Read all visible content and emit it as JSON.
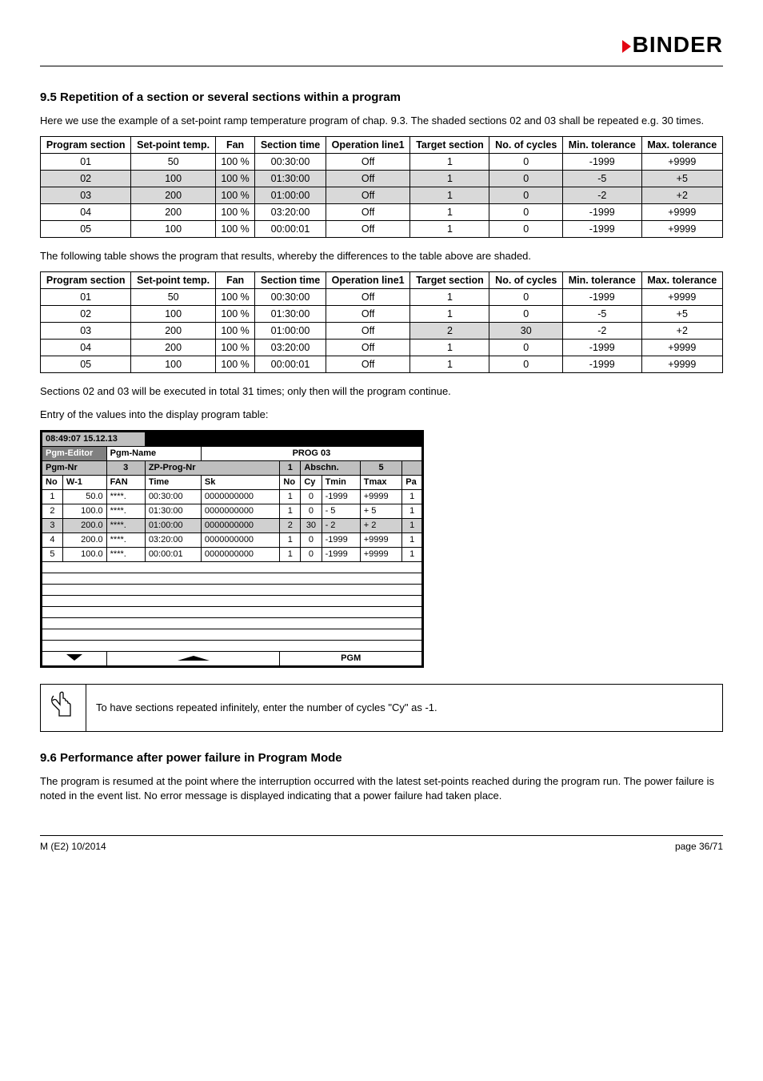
{
  "logo_text": "BINDER",
  "section95": {
    "heading": "9.5    Repetition of a section or several sections within a program",
    "intro": "Here we use the example of a set-point ramp temperature program of chap. 9.3. The shaded sections 02 and 03 shall be repeated e.g. 30 times.",
    "table1_headers": [
      "Program section",
      "Set-point temp.",
      "Fan",
      "Section time",
      "Operation line1",
      "Target section",
      "No. of cycles",
      "Min. tolerance",
      "Max. tolerance"
    ],
    "table1_rows": [
      {
        "cells": [
          "01",
          "50",
          "100 %",
          "00:30:00",
          "Off",
          "1",
          "0",
          "-1999",
          "+9999"
        ],
        "shaded": false
      },
      {
        "cells": [
          "02",
          "100",
          "100 %",
          "01:30:00",
          "Off",
          "1",
          "0",
          "-5",
          "+5"
        ],
        "shaded": true
      },
      {
        "cells": [
          "03",
          "200",
          "100 %",
          "01:00:00",
          "Off",
          "1",
          "0",
          "-2",
          "+2"
        ],
        "shaded": true
      },
      {
        "cells": [
          "04",
          "200",
          "100 %",
          "03:20:00",
          "Off",
          "1",
          "0",
          "-1999",
          "+9999"
        ],
        "shaded": false
      },
      {
        "cells": [
          "05",
          "100",
          "100 %",
          "00:00:01",
          "Off",
          "1",
          "0",
          "-1999",
          "+9999"
        ],
        "shaded": false
      }
    ],
    "mid_text": "The following table shows the program that results, whereby the differences to the table above are shaded.",
    "table2_rows": [
      {
        "cells": [
          "01",
          "50",
          "100 %",
          "00:30:00",
          "Off",
          "1",
          "0",
          "-1999",
          "+9999"
        ],
        "shaded": false
      },
      {
        "cells": [
          "02",
          "100",
          "100 %",
          "01:30:00",
          "Off",
          "1",
          "0",
          "-5",
          "+5"
        ],
        "shaded": false
      },
      {
        "cells": [
          "03",
          "200",
          "100 %",
          "01:00:00",
          "Off",
          "2",
          "30",
          "-2",
          "+2"
        ],
        "shaded": [
          "",
          "",
          "",
          "",
          "",
          "#d9d9d9",
          "#d9d9d9",
          "",
          ""
        ]
      },
      {
        "cells": [
          "04",
          "200",
          "100 %",
          "03:20:00",
          "Off",
          "1",
          "0",
          "-1999",
          "+9999"
        ],
        "shaded": false
      },
      {
        "cells": [
          "05",
          "100",
          "100 %",
          "00:00:01",
          "Off",
          "1",
          "0",
          "-1999",
          "+9999"
        ],
        "shaded": false
      }
    ],
    "after_text1": "Sections 02 and 03 will be executed in total 31 times; only then will the program continue.",
    "after_text2": "Entry of the values into the display program table:"
  },
  "panel": {
    "datetime": "08:49:07  15.12.13",
    "hdr_pgm_editor": "Pgm-Editor",
    "hdr_pgm_name": "Pgm-Name",
    "hdr_prog": "PROG 03",
    "hdr_pgm_nr": "Pgm-Nr",
    "hdr_3": "3",
    "hdr_zp": "ZP-Prog-Nr",
    "hdr_1": "1",
    "hdr_abschn": "Abschn.",
    "hdr_5": "5",
    "col_headers": [
      "No",
      "W-1",
      "FAN",
      "Time",
      "Sk",
      "No",
      "Cy",
      "Tmin",
      "Tmax",
      "Pa"
    ],
    "rows": [
      {
        "c": [
          "1",
          "50.0",
          "****.",
          "00:30:00",
          "0000000000",
          "1",
          "0",
          "-1999",
          "+9999",
          "1"
        ],
        "shaded": false
      },
      {
        "c": [
          "2",
          "100.0",
          "****.",
          "01:30:00",
          "0000000000",
          "1",
          "0",
          "-    5",
          "+    5",
          "1"
        ],
        "shaded": false
      },
      {
        "c": [
          "3",
          "200.0",
          "****.",
          "01:00:00",
          "0000000000",
          "2",
          "30",
          "-    2",
          "+    2",
          "1"
        ],
        "shaded": true
      },
      {
        "c": [
          "4",
          "200.0",
          "****.",
          "03:20:00",
          "0000000000",
          "1",
          "0",
          "-1999",
          "+9999",
          "1"
        ],
        "shaded": false
      },
      {
        "c": [
          "5",
          "100.0",
          "****.",
          "00:00:01",
          "0000000000",
          "1",
          "0",
          "-1999",
          "+9999",
          "1"
        ],
        "shaded": false
      }
    ],
    "pgm_label": "PGM"
  },
  "note_text": "To have sections repeated infinitely, enter the number of cycles \"Cy\" as -1.",
  "section96": {
    "heading": "9.6    Performance after power failure in Program Mode",
    "body": "The program is resumed at the point where the interruption occurred with the latest set-points reached during the program run. The power failure is noted in the event list. No error message is displayed indicating that a power failure had taken place."
  },
  "footer_left": "M (E2) 10/2014",
  "footer_right": "page 36/71"
}
